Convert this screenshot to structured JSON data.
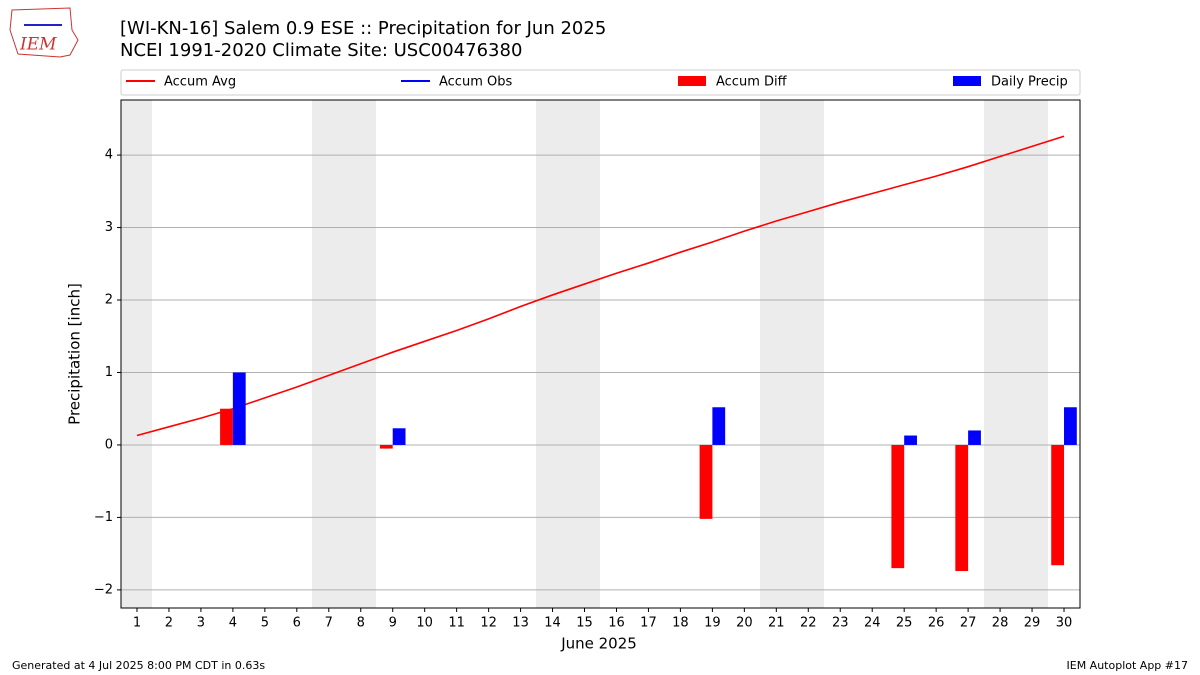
{
  "chart_data": {
    "type": "bar",
    "title": "[WI-KN-16] Salem 0.9 ESE :: Precipitation for Jun 2025",
    "subtitle": "NCEI 1991-2020 Climate Site: USC00476380",
    "x_label": "June 2025",
    "y_label": "Precipitation [inch]",
    "x": [
      1,
      2,
      3,
      4,
      5,
      6,
      7,
      8,
      9,
      10,
      11,
      12,
      13,
      14,
      15,
      16,
      17,
      18,
      19,
      20,
      21,
      22,
      23,
      24,
      25,
      26,
      27,
      28,
      29,
      30
    ],
    "xlim": [
      0.5,
      30.5
    ],
    "xticks": [
      1,
      2,
      3,
      4,
      5,
      6,
      7,
      8,
      9,
      10,
      11,
      12,
      13,
      14,
      15,
      16,
      17,
      18,
      19,
      20,
      21,
      22,
      23,
      24,
      25,
      26,
      27,
      28,
      29,
      30
    ],
    "ylim": [
      -2.25,
      4.76
    ],
    "yticks": [
      {
        "value": -2,
        "label": "−2"
      },
      {
        "value": -1,
        "label": "−1"
      },
      0,
      1,
      2,
      3,
      4
    ],
    "grid": true,
    "series": [
      {
        "name": "Accum Avg",
        "type": "line",
        "color": "#ff0000",
        "values": [
          0.13,
          0.25,
          0.37,
          0.5,
          0.65,
          0.8,
          0.96,
          1.12,
          1.28,
          1.43,
          1.58,
          1.74,
          1.91,
          2.07,
          2.22,
          2.37,
          2.51,
          2.66,
          2.8,
          2.95,
          3.09,
          3.22,
          3.35,
          3.47,
          3.59,
          3.71,
          3.84,
          3.98,
          4.12,
          4.26
        ]
      },
      {
        "name": "Accum Obs",
        "type": "line",
        "color": "#0000ff",
        "values": [
          null,
          null,
          null,
          null,
          null,
          null,
          null,
          null,
          null,
          null,
          null,
          null,
          null,
          null,
          null,
          null,
          null,
          null,
          null,
          null,
          null,
          null,
          null,
          null,
          null,
          null,
          null,
          null,
          null,
          null
        ]
      },
      {
        "name": "Accum Diff",
        "type": "bar",
        "color": "#ff0000",
        "values": [
          null,
          null,
          null,
          0.5,
          null,
          null,
          null,
          null,
          -0.05,
          null,
          null,
          null,
          null,
          null,
          null,
          null,
          null,
          null,
          -1.02,
          null,
          null,
          null,
          null,
          null,
          -1.7,
          null,
          -1.74,
          null,
          null,
          -1.66
        ]
      },
      {
        "name": "Daily Precip",
        "type": "bar",
        "color": "#0000ff",
        "values": [
          null,
          null,
          null,
          1.0,
          null,
          null,
          null,
          null,
          0.23,
          null,
          null,
          null,
          null,
          null,
          null,
          null,
          null,
          null,
          0.52,
          null,
          null,
          null,
          null,
          null,
          0.13,
          null,
          0.2,
          null,
          null,
          0.52
        ]
      }
    ]
  },
  "logo_text": "IEM",
  "footer": {
    "left": "Generated at 4 Jul 2025 8:00 PM CDT in 0.63s",
    "right": "IEM Autoplot App #17"
  }
}
